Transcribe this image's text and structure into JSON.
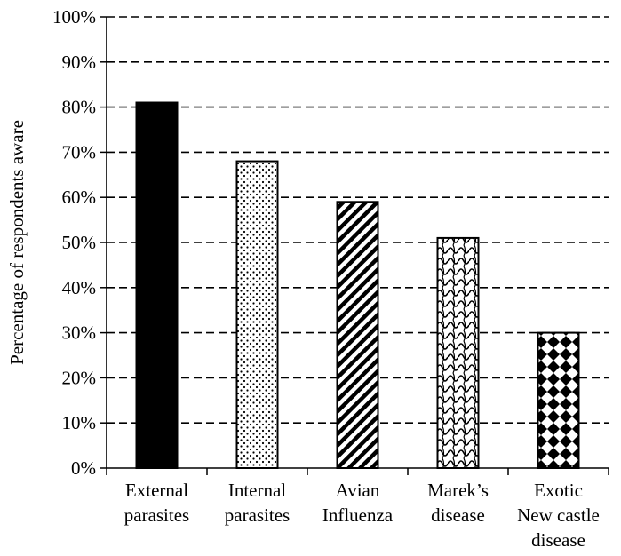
{
  "chart_data": {
    "type": "bar",
    "categories": [
      [
        "External",
        "parasites"
      ],
      [
        "Internal",
        "parasites"
      ],
      [
        "Avian",
        "Influenza"
      ],
      [
        "Marek’s",
        "disease"
      ],
      [
        "Exotic",
        "New castle",
        "disease"
      ]
    ],
    "values": [
      81,
      68,
      59,
      51,
      30
    ],
    "patterns": [
      "solid-black",
      "dots",
      "diagonal-stripes",
      "wave",
      "diamonds"
    ],
    "ylabel": "Percentage of respondents aware",
    "ylim": [
      0,
      100
    ],
    "yticks": [
      "0%",
      "10%",
      "20%",
      "30%",
      "40%",
      "50%",
      "60%",
      "70%",
      "80%",
      "90%",
      "100%"
    ],
    "grid": "dashed-horizontal",
    "bar_color": "#000000",
    "background": "#ffffff"
  }
}
